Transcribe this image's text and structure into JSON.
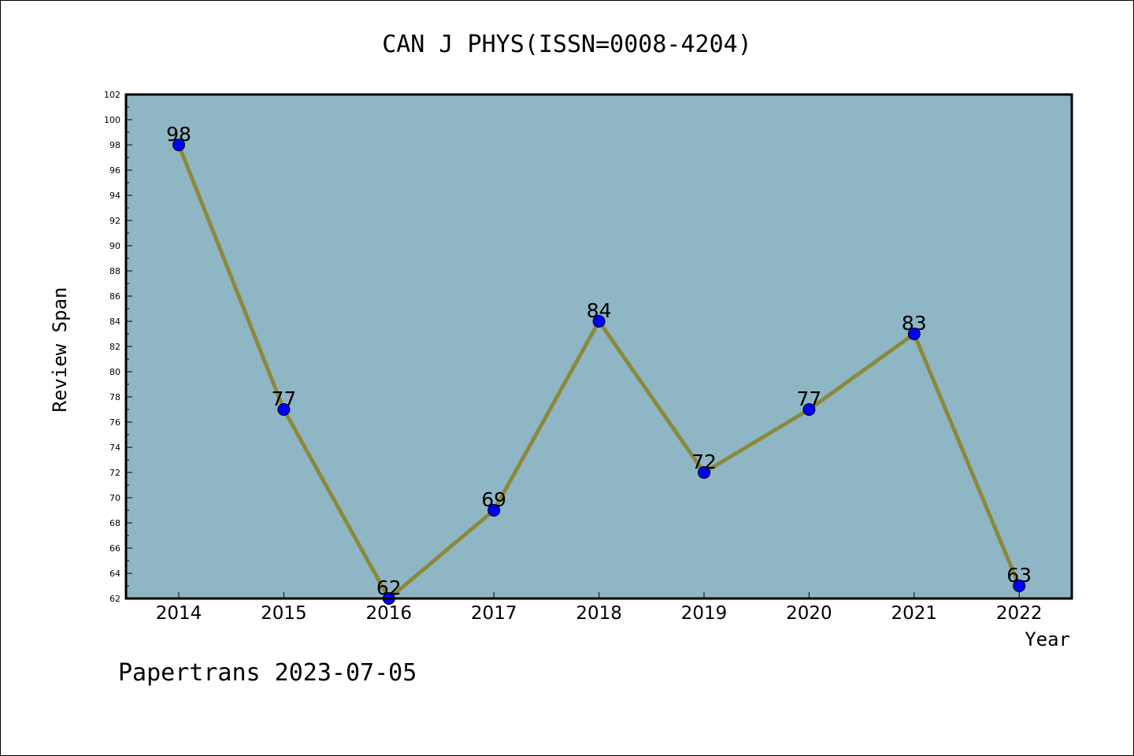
{
  "chart_data": {
    "type": "line",
    "title": "CAN J PHYS(ISSN=0008-4204)",
    "xlabel": "Year",
    "ylabel": "Review Span",
    "categories": [
      "2014",
      "2015",
      "2016",
      "2017",
      "2018",
      "2019",
      "2020",
      "2021",
      "2022"
    ],
    "series": [
      {
        "values": [
          98,
          77,
          62,
          69,
          84,
          72,
          77,
          83,
          63
        ]
      }
    ],
    "ylim": [
      62,
      102
    ],
    "ytick_step": 2,
    "grid": false,
    "legend": "none",
    "data_labels": true,
    "colors": {
      "plot_background": "#8fb6c4",
      "line": "#8b8a3c",
      "marker": "#0000ff",
      "frame": "#000000"
    }
  },
  "footer": "Papertrans 2023-07-05"
}
